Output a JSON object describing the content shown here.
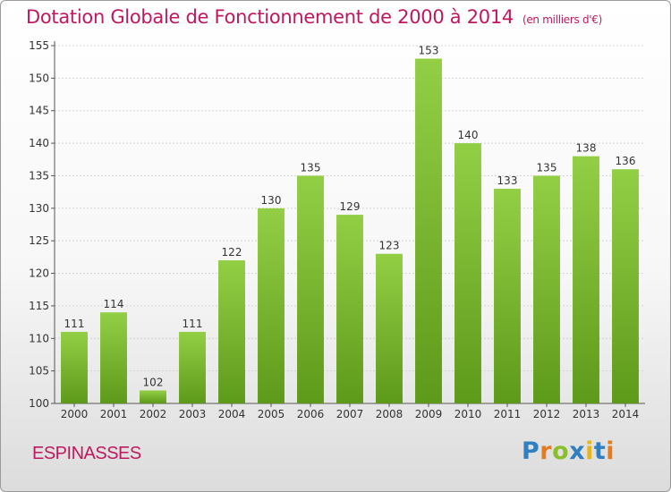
{
  "chart_data": {
    "type": "bar",
    "title": "Dotation Globale de Fonctionnement de 2000 à 2014",
    "subtitle": "(en milliers d'€)",
    "categories": [
      "2000",
      "2001",
      "2002",
      "2003",
      "2004",
      "2005",
      "2006",
      "2007",
      "2008",
      "2009",
      "2010",
      "2011",
      "2012",
      "2013",
      "2014"
    ],
    "values": [
      111,
      114,
      102,
      111,
      122,
      130,
      135,
      129,
      123,
      153,
      140,
      133,
      135,
      138,
      136
    ],
    "data_labels": [
      "111",
      "114",
      "102",
      "111",
      "122",
      "130",
      "135",
      "129",
      "123",
      "153",
      "140",
      "133",
      "135",
      "138",
      "136"
    ],
    "ylim": [
      100,
      155
    ],
    "yticks": [
      "100",
      "105",
      "110",
      "115",
      "120",
      "125",
      "130",
      "135",
      "140",
      "145",
      "150",
      "155"
    ],
    "grid": true,
    "bar_color": "#7fbf2f"
  },
  "footer": {
    "commune": "ESPINASSES",
    "logo": {
      "p": "P",
      "r": "r",
      "o": "o",
      "x": "x",
      "i1": "i",
      "t": "t",
      "i2": "i"
    }
  },
  "colors": {
    "title": "#c0185f",
    "bar": "#7fbf2f"
  }
}
